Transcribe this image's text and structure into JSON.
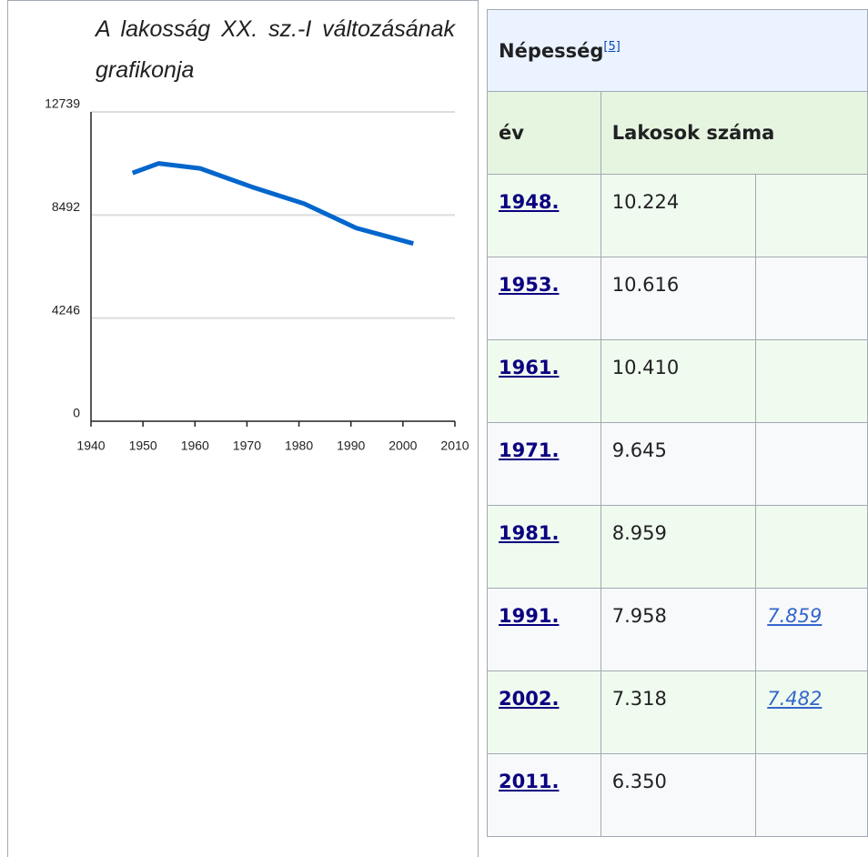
{
  "chart_data": {
    "type": "line",
    "title": "A lakosság XX. sz.-I változásának grafikonja",
    "x": [
      1948,
      1953,
      1961,
      1971,
      1981,
      1991,
      2002
    ],
    "values": [
      10224,
      10616,
      10410,
      9645,
      8959,
      7958,
      7318
    ],
    "color": "#0066cc",
    "xlim": [
      1940,
      2010
    ],
    "xticks": [
      1940,
      1950,
      1960,
      1970,
      1980,
      1990,
      2000,
      2010
    ],
    "ylim": [
      0,
      12739
    ],
    "yticks": [
      0,
      4246,
      8492,
      12739
    ],
    "grid": true
  },
  "table": {
    "title": "Népesség",
    "ref": "[5]",
    "columns": [
      "év",
      "Lakosok száma"
    ],
    "rows": [
      {
        "year": "1948.",
        "population": "10.224"
      },
      {
        "year": "1953.",
        "population": "10.616"
      },
      {
        "year": "1961.",
        "population": "10.410"
      },
      {
        "year": "1971.",
        "population": "9.645"
      },
      {
        "year": "1981.",
        "population": "8.959"
      },
      {
        "year": "1991.",
        "population": "7.958",
        "alt": "7.859"
      },
      {
        "year": "2002.",
        "population": "7.318",
        "alt": "7.482"
      },
      {
        "year": "2011.",
        "population": "6.350"
      }
    ]
  }
}
